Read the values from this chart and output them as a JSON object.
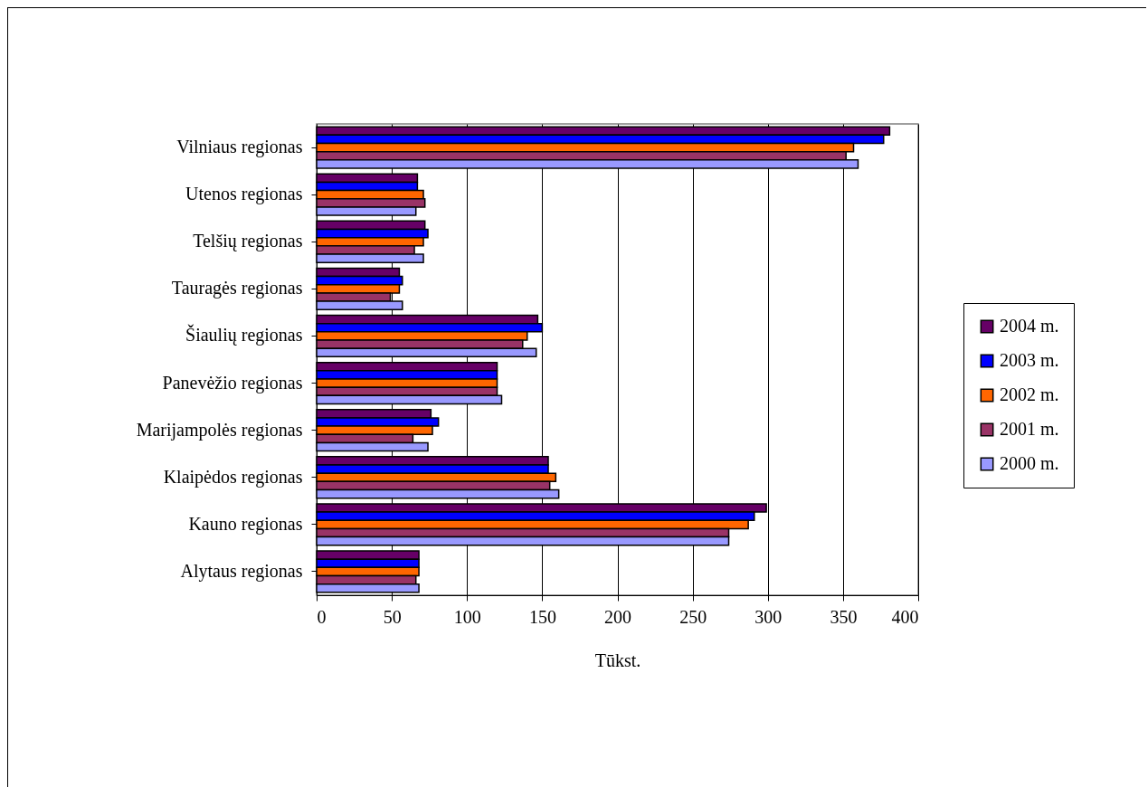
{
  "chart_data": {
    "type": "bar",
    "orientation": "horizontal",
    "xlabel": "Tūkst.",
    "categories": [
      "Vilniaus regionas",
      "Utenos regionas",
      "Telšių regionas",
      "Tauragės regionas",
      "Šiaulių regionas",
      "Panevėžio regionas",
      "Marijampolės regionas",
      "Klaipėdos regionas",
      "Kauno regionas",
      "Alytaus regionas"
    ],
    "series": [
      {
        "name": "2004 m.",
        "color": "#660066",
        "values": [
          381,
          67,
          72,
          55,
          147,
          120,
          76,
          154,
          299,
          68
        ]
      },
      {
        "name": "2003 m.",
        "color": "#0000ff",
        "values": [
          377,
          67,
          74,
          57,
          150,
          120,
          81,
          154,
          291,
          68
        ]
      },
      {
        "name": "2002 m.",
        "color": "#ff6600",
        "values": [
          357,
          71,
          71,
          55,
          140,
          120,
          77,
          159,
          287,
          68
        ]
      },
      {
        "name": "2001 m.",
        "color": "#993366",
        "values": [
          352,
          72,
          65,
          49,
          137,
          120,
          64,
          155,
          274,
          66
        ]
      },
      {
        "name": "2000 m.",
        "color": "#9999ff",
        "values": [
          360,
          66,
          71,
          57,
          146,
          123,
          74,
          161,
          274,
          68
        ]
      }
    ],
    "xlim": [
      0,
      400
    ],
    "xticks": [
      0,
      50,
      100,
      150,
      200,
      250,
      300,
      350,
      400
    ],
    "grid": "x",
    "legend": "right"
  }
}
